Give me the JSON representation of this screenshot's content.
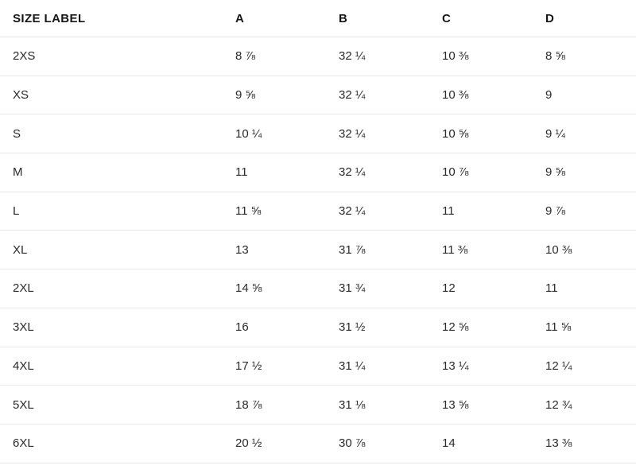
{
  "colors": {
    "background": "#ffffff",
    "header_text": "#161616",
    "cell_text": "#2a2a2a",
    "row_border": "#e7e7e7"
  },
  "table": {
    "columns": [
      "SIZE LABEL",
      "A",
      "B",
      "C",
      "D"
    ],
    "rows": [
      {
        "label": "2XS",
        "a": "8 ⅞",
        "b": "32 ¼",
        "c": "10 ⅜",
        "d": "8 ⅝"
      },
      {
        "label": "XS",
        "a": "9 ⅝",
        "b": "32 ¼",
        "c": "10 ⅜",
        "d": "9"
      },
      {
        "label": "S",
        "a": "10 ¼",
        "b": "32 ¼",
        "c": "10 ⅝",
        "d": "9 ¼"
      },
      {
        "label": "M",
        "a": "11",
        "b": "32 ¼",
        "c": "10 ⅞",
        "d": "9 ⅝"
      },
      {
        "label": "L",
        "a": "11 ⅝",
        "b": "32 ¼",
        "c": "11",
        "d": "9 ⅞"
      },
      {
        "label": "XL",
        "a": "13",
        "b": "31 ⅞",
        "c": "11 ⅜",
        "d": "10 ⅜"
      },
      {
        "label": "2XL",
        "a": "14 ⅝",
        "b": "31 ¾",
        "c": "12",
        "d": "11"
      },
      {
        "label": "3XL",
        "a": "16",
        "b": "31 ½",
        "c": "12 ⅝",
        "d": "11 ⅝"
      },
      {
        "label": "4XL",
        "a": "17 ½",
        "b": "31 ¼",
        "c": "13 ¼",
        "d": "12 ¼"
      },
      {
        "label": "5XL",
        "a": "18 ⅞",
        "b": "31 ⅛",
        "c": "13 ⅝",
        "d": "12 ¾"
      },
      {
        "label": "6XL",
        "a": "20 ½",
        "b": "30 ⅞",
        "c": "14",
        "d": "13 ⅜"
      }
    ]
  }
}
